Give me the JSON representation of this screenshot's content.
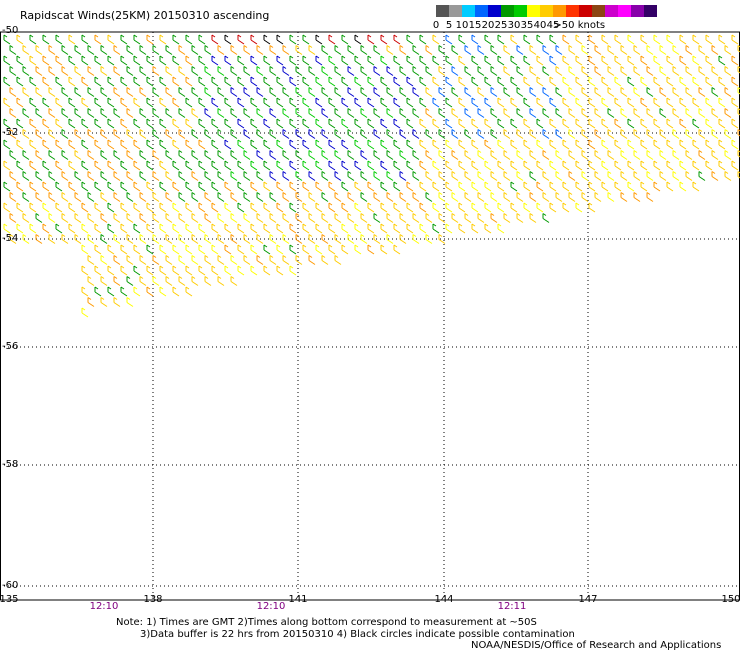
{
  "title": "Rapidscat Winds(25KM) 20150310 ascending",
  "legend": {
    "colors": [
      "#555555",
      "#999999",
      "#00ccff",
      "#0066ff",
      "#0000cc",
      "#009900",
      "#00cc00",
      "#ffff00",
      "#ffcc00",
      "#ff9900",
      "#ff3300",
      "#cc0000",
      "#8b4513",
      "#cc00cc",
      "#ff00ff",
      "#8800aa",
      "#330066"
    ],
    "labels": [
      {
        "t": "0",
        "at": 0
      },
      {
        "t": "5",
        "at": 2
      },
      {
        "t": "10",
        "at": 4
      },
      {
        "t": "15",
        "at": 6
      },
      {
        "t": "20",
        "at": 8
      },
      {
        "t": "25",
        "at": 10
      },
      {
        "t": "30",
        "at": 12
      },
      {
        "t": "35",
        "at": 14
      },
      {
        "t": "40",
        "at": 16
      },
      {
        "t": "45",
        "at": 18
      },
      {
        "t": ">50 knots",
        "at": 20.5
      }
    ]
  },
  "axes": {
    "lat_labels": [
      "-50",
      "-52",
      "-54",
      "-56",
      "-58",
      "-60"
    ],
    "lon_labels": [
      "135",
      "138",
      "141",
      "144",
      "147",
      "150"
    ],
    "time_labels": [
      "12:10",
      "12:10",
      "12:11"
    ]
  },
  "notes": {
    "line1": "Note: 1) Times are GMT 2)Times along bottom correspond to measurement at ~50S",
    "line2": "3)Data buffer is 22 hrs from 20150310 4) Black circles indicate possible contamination",
    "line3": "NOAA/NESDIS/Office of Research and Applications"
  }
}
